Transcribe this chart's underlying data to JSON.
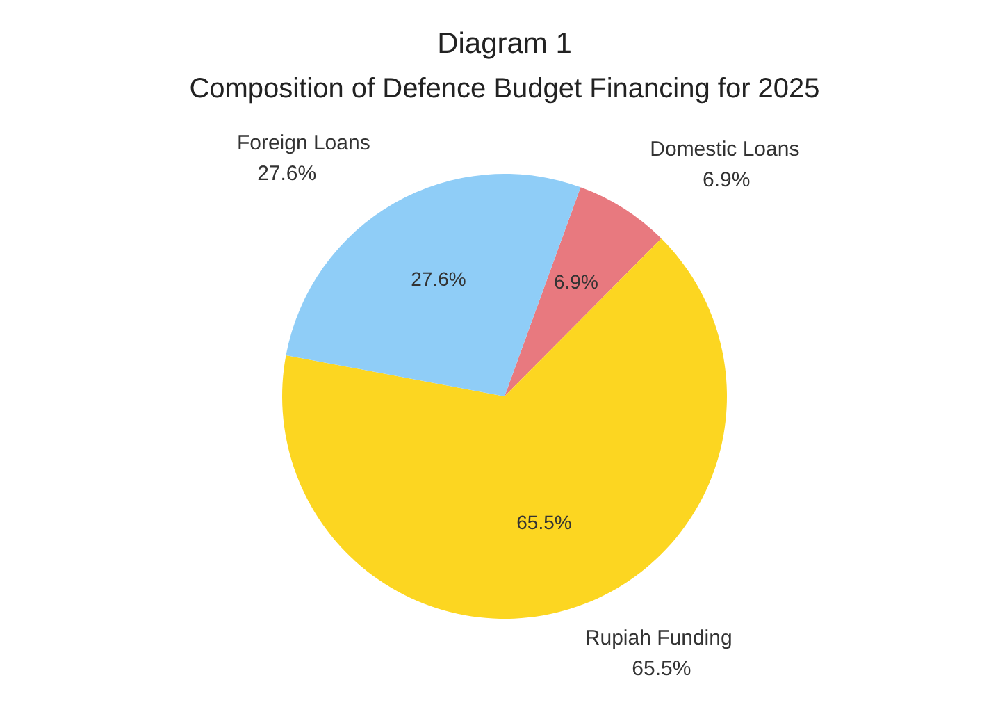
{
  "chart_data": {
    "type": "pie",
    "title": "Diagram 1",
    "subtitle": "Composition of Defence Budget Financing for 2025",
    "categories": [
      "Domestic Loans",
      "Rupiah Funding",
      "Foreign Loans"
    ],
    "values": [
      6.9,
      65.5,
      27.6
    ],
    "value_labels": [
      "6.9%",
      "65.5%",
      "27.6%"
    ],
    "colors": [
      "#e8797f",
      "#fcd621",
      "#8fcdf7"
    ]
  }
}
